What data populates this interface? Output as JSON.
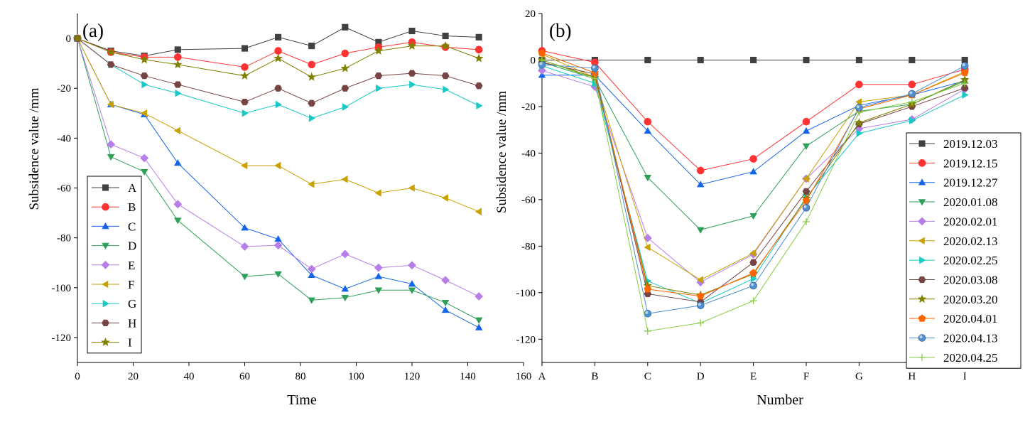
{
  "chart_data": [
    {
      "type": "line",
      "panel_label": "(a)",
      "xlabel": "Time",
      "ylabel": "Subsidence value /mm",
      "xlim": [
        0,
        160
      ],
      "ylim": [
        -130,
        10
      ],
      "xticks": [
        0,
        20,
        40,
        60,
        80,
        100,
        120,
        140,
        160
      ],
      "yticks": [
        0,
        -20,
        -40,
        -60,
        -80,
        -100,
        -120
      ],
      "legend_position": "bottom-left",
      "x": [
        0,
        12,
        24,
        36,
        60,
        72,
        84,
        96,
        108,
        120,
        132,
        144
      ],
      "series": [
        {
          "name": "A",
          "color": "#404040",
          "marker": "square",
          "values": [
            0,
            -5,
            -7,
            -4.5,
            -4,
            0.5,
            -3,
            4.5,
            -1.5,
            3,
            1,
            0.5
          ]
        },
        {
          "name": "B",
          "color": "#ff3333",
          "marker": "circle",
          "values": [
            0,
            -5.5,
            -7.5,
            -7.5,
            -11.5,
            -5,
            -10.5,
            -6,
            -3.5,
            -1.5,
            -3.5,
            -4.5
          ]
        },
        {
          "name": "C",
          "color": "#1565e8",
          "marker": "triangle-up",
          "values": [
            0,
            -26.5,
            -30.5,
            -50,
            -76,
            -80.5,
            -95,
            -100.5,
            -95.5,
            -98.5,
            -109,
            -116
          ]
        },
        {
          "name": "D",
          "color": "#2ea05a",
          "marker": "triangle-down",
          "values": [
            0,
            -47.5,
            -53.5,
            -73,
            -95.5,
            -94.5,
            -105,
            -104,
            -101,
            -101,
            -106,
            -113
          ]
        },
        {
          "name": "E",
          "color": "#b77ee8",
          "marker": "diamond",
          "values": [
            0,
            -42.5,
            -48,
            -66.5,
            -83.5,
            -83,
            -92.5,
            -86.5,
            -92,
            -91,
            -97,
            -103.5
          ]
        },
        {
          "name": "F",
          "color": "#c9a100",
          "marker": "triangle-left",
          "values": [
            0,
            -26.5,
            -30,
            -37,
            -51,
            -51,
            -58.5,
            -56.5,
            -62,
            -60,
            -64,
            -69.5
          ]
        },
        {
          "name": "G",
          "color": "#18c9c4",
          "marker": "triangle-right",
          "values": [
            0,
            -10.5,
            -18.5,
            -22,
            -30,
            -26.5,
            -32,
            -27.5,
            -20,
            -18.5,
            -20.5,
            -27
          ]
        },
        {
          "name": "H",
          "color": "#774444",
          "marker": "hexagon",
          "values": [
            0,
            -10.5,
            -15,
            -18.5,
            -25.5,
            -20,
            -26,
            -20,
            -15,
            -14,
            -15,
            -19
          ]
        },
        {
          "name": "I",
          "color": "#808000",
          "marker": "star",
          "values": [
            0,
            -5.5,
            -8.5,
            -10.5,
            -15,
            -8,
            -15.5,
            -12,
            -5,
            -3,
            -3,
            -8
          ]
        }
      ]
    },
    {
      "type": "line",
      "panel_label": "(b)",
      "xlabel": "Number",
      "ylabel": "Subsidence value /mm",
      "ylim": [
        -130,
        20
      ],
      "yticks": [
        20,
        0,
        -20,
        -40,
        -60,
        -80,
        -100,
        -120
      ],
      "categories": [
        "A",
        "B",
        "C",
        "D",
        "E",
        "F",
        "G",
        "H",
        "I"
      ],
      "legend_position": "right",
      "series": [
        {
          "name": "2019.12.03",
          "color": "#404040",
          "marker": "square",
          "values": [
            0,
            0,
            0,
            0,
            0,
            0,
            0,
            0,
            0
          ]
        },
        {
          "name": "2019.12.15",
          "color": "#ff3333",
          "marker": "circle",
          "values": [
            4,
            -1,
            -26.5,
            -47.5,
            -42.5,
            -26.5,
            -10.5,
            -10.5,
            -4
          ]
        },
        {
          "name": "2019.12.27",
          "color": "#1565e8",
          "marker": "triangle-up",
          "values": [
            -6.5,
            -6.5,
            -30.5,
            -53.5,
            -48,
            -30.5,
            -19.5,
            -15,
            -9
          ]
        },
        {
          "name": "2020.01.08",
          "color": "#2ea05a",
          "marker": "triangle-down",
          "values": [
            -1,
            -8,
            -50.5,
            -73,
            -67,
            -37,
            -22,
            -19,
            -9
          ]
        },
        {
          "name": "2020.02.01",
          "color": "#b77ee8",
          "marker": "diamond",
          "values": [
            -4.5,
            -11.5,
            -76.5,
            -95.5,
            -83.5,
            -51,
            -29.5,
            -25.5,
            -12.5
          ]
        },
        {
          "name": "2020.02.13",
          "color": "#c9a100",
          "marker": "triangle-left",
          "values": [
            2.5,
            -7.5,
            -80.5,
            -94.5,
            -83,
            -51,
            -18,
            -15,
            -5
          ]
        },
        {
          "name": "2020.02.25",
          "color": "#18c9c4",
          "marker": "triangle-right",
          "values": [
            -2.5,
            -10,
            -95,
            -104.5,
            -94,
            -59,
            -31.5,
            -26,
            -15
          ]
        },
        {
          "name": "2020.03.08",
          "color": "#774444",
          "marker": "hexagon",
          "values": [
            -1,
            -6,
            -100.5,
            -104,
            -87,
            -56.5,
            -27.5,
            -20,
            -12
          ]
        },
        {
          "name": "2020.03.20",
          "color": "#808000",
          "marker": "star",
          "values": [
            0,
            -7.5,
            -97,
            -101,
            -92,
            -59.5,
            -27,
            -19,
            -8.5
          ]
        },
        {
          "name": "2020.04.01",
          "color": "#ff6600",
          "marker": "pentagon",
          "values": [
            3,
            -5.5,
            -98.5,
            -101.5,
            -91.5,
            -60.5,
            -21,
            -15,
            -5.5
          ]
        },
        {
          "name": "2020.04.13",
          "color": "#4f8fcf",
          "marker": "sphere",
          "values": [
            -2,
            -3.5,
            -109,
            -105.5,
            -97,
            -63.5,
            -20.5,
            -14.5,
            -2.5
          ]
        },
        {
          "name": "2020.04.25",
          "color": "#88cc44",
          "marker": "plus",
          "values": [
            0,
            -8,
            -116.5,
            -113,
            -103.5,
            -69.5,
            -22.5,
            -18,
            -10
          ]
        }
      ]
    }
  ]
}
